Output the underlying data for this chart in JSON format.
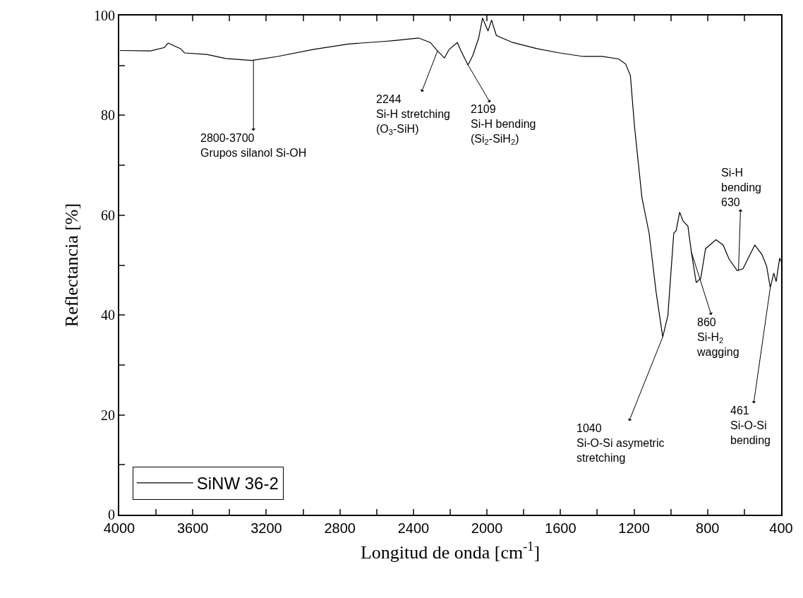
{
  "chart_data": {
    "type": "line",
    "xlabel": "Longitud de onda [cm$^{-1}$]",
    "ylabel": "Reflectancia [%]",
    "xlim": [
      4000,
      400
    ],
    "ylim": [
      0,
      100
    ],
    "xticks": [
      4000,
      {
        "value": 3800,
        "label": null
      },
      3600,
      {
        "value": 3400,
        "label": null
      },
      3200,
      {
        "value": 3000,
        "label": null
      },
      2800,
      {
        "value": 2600,
        "label": null
      },
      2400,
      {
        "value": 2200,
        "label": null
      },
      2000,
      {
        "value": 1800,
        "label": null
      },
      1600,
      {
        "value": 1400,
        "label": null
      },
      1200,
      {
        "value": 1000,
        "label": null
      },
      800,
      {
        "value": 600,
        "label": null
      },
      400
    ],
    "yticks": [
      0,
      {
        "value": 10,
        "label": null
      },
      20,
      {
        "value": 30,
        "label": null
      },
      40,
      {
        "value": 50,
        "label": null
      },
      60,
      {
        "value": 70,
        "label": null
      },
      80,
      {
        "value": 90,
        "label": null
      },
      100
    ],
    "legend": "bottom left",
    "marker": "none",
    "line_style": "solid",
    "series": [
      {
        "name": "SiNW 36-2",
        "color": "#000000",
        "x": [
          3996,
          3830,
          3754,
          3734,
          3664,
          3645,
          3523,
          3421,
          3280,
          3139,
          2947,
          2755,
          2564,
          2500,
          2372,
          2308,
          2269,
          2231,
          2206,
          2161,
          2141,
          2103,
          2077,
          2045,
          2024,
          1994,
          1975,
          1949,
          1860,
          1732,
          1604,
          1476,
          1374,
          1284,
          1246,
          1220,
          1197,
          1157,
          1118,
          1080,
          1044,
          1016,
          984,
          971,
          952,
          933,
          907,
          888,
          862,
          837,
          811,
          754,
          715,
          683,
          639,
          607,
          575,
          543,
          504,
          479,
          459,
          440,
          427,
          408,
          400
        ],
        "values": [
          93.0,
          92.9,
          93.6,
          94.5,
          93.3,
          92.5,
          92.2,
          91.4,
          91.0,
          91.8,
          93.2,
          94.3,
          94.8,
          95.0,
          95.5,
          94.6,
          92.9,
          91.5,
          93.2,
          94.6,
          92.9,
          90.1,
          92.0,
          95.5,
          99.5,
          96.9,
          99.1,
          96.0,
          94.6,
          93.4,
          92.5,
          91.8,
          91.8,
          91.3,
          90.3,
          88.0,
          77.6,
          63.5,
          56.4,
          44.6,
          35.6,
          39.9,
          56.4,
          56.9,
          60.6,
          58.8,
          57.8,
          52.6,
          46.5,
          47.4,
          53.3,
          55.1,
          54.0,
          51.2,
          48.9,
          49.3,
          51.7,
          54.0,
          52.1,
          49.8,
          45.5,
          48.4,
          46.7,
          51.4,
          50.7
        ]
      }
    ],
    "annotations": [
      {
        "text": "2800-3700\nGrupos silanol Si-OH",
        "x": 3270,
        "y": 91.0
      },
      {
        "text": "2244\nSi-H stretching\n(O$_{3}$-SiH)",
        "x": 2269,
        "y": 92.9
      },
      {
        "text": "2109\nSi-H bending\n(Si$_{2}$-SiH$_{2}$)",
        "x": 2103,
        "y": 90.1
      },
      {
        "text": "1040\nSi-O-Si asymetric\nstretching",
        "x": 1044,
        "y": 35.6
      },
      {
        "text": "860\nSi-H$_{2}$\nwagging",
        "x": 888,
        "y": 52.6
      },
      {
        "text": "Si-H\nbending\n630",
        "x": 632,
        "y": 48.9
      },
      {
        "text": "461\nSi-O-Si\nbending",
        "x": 459,
        "y": 45.5
      }
    ]
  }
}
